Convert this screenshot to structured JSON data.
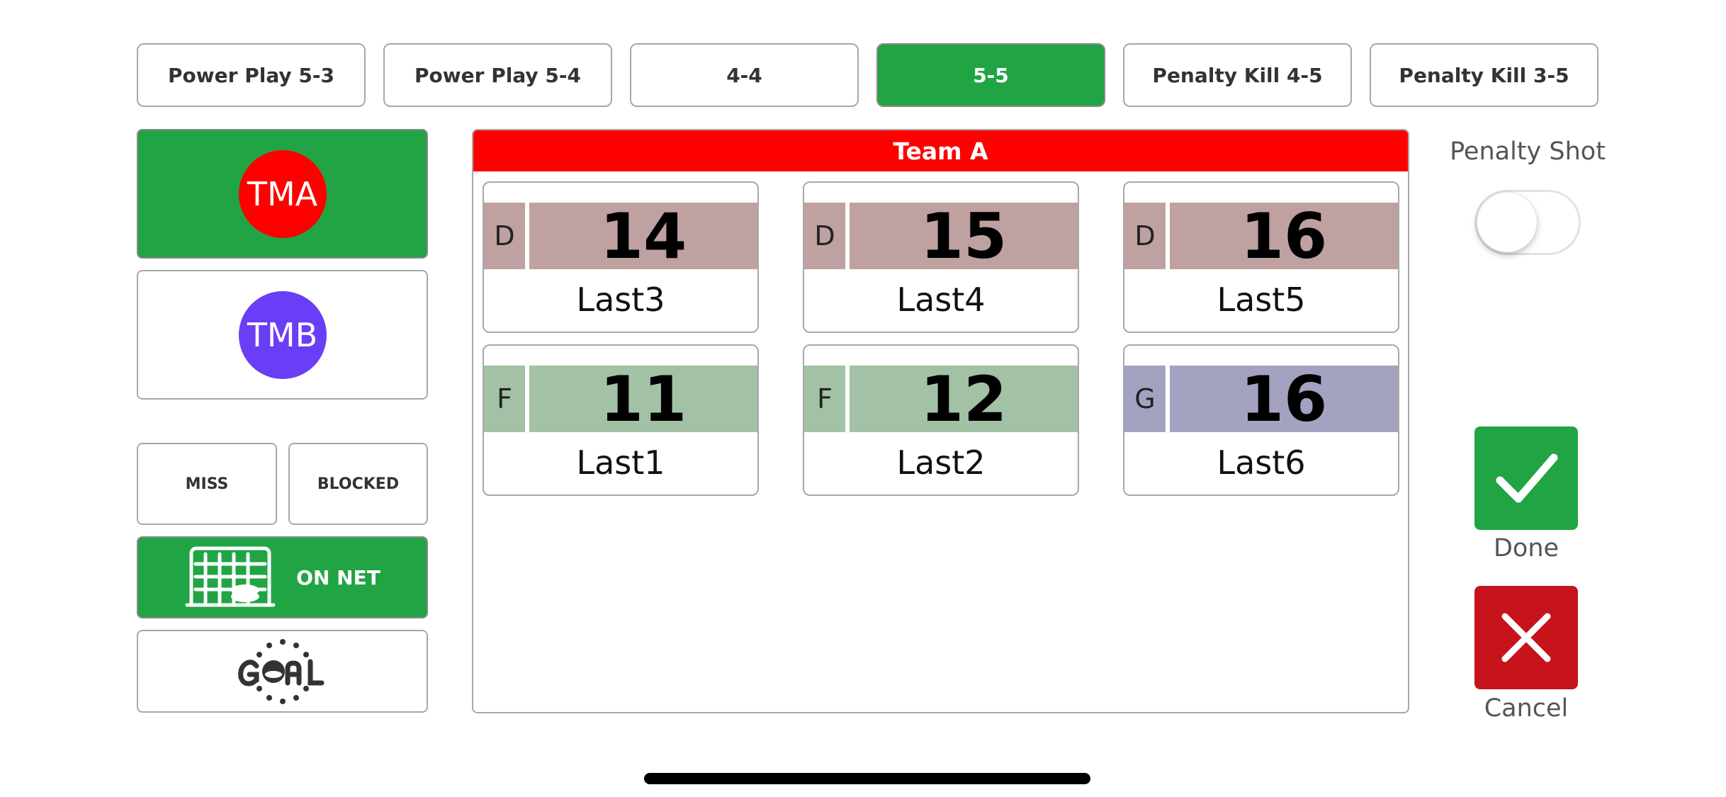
{
  "situations": [
    {
      "label": "Power Play 5-3",
      "active": false
    },
    {
      "label": "Power Play 5-4",
      "active": false
    },
    {
      "label": "4-4",
      "active": false
    },
    {
      "label": "5-5",
      "active": true
    },
    {
      "label": "Penalty Kill 4-5",
      "active": false
    },
    {
      "label": "Penalty Kill 3-5",
      "active": false
    }
  ],
  "teams": [
    {
      "abbr": "TMA",
      "color": "#ff0000",
      "selected": true
    },
    {
      "abbr": "TMB",
      "color": "#6a3df6",
      "selected": false
    }
  ],
  "shot_results": {
    "miss": "MISS",
    "blocked": "BLOCKED",
    "on_net": "ON NET",
    "goal": "GOAL"
  },
  "roster": {
    "team_name": "Team A",
    "players": [
      {
        "position": "D",
        "number": "14",
        "name": "Last3",
        "color": "#bfa1a2"
      },
      {
        "position": "D",
        "number": "15",
        "name": "Last4",
        "color": "#bfa1a2"
      },
      {
        "position": "D",
        "number": "16",
        "name": "Last5",
        "color": "#bfa1a2"
      },
      {
        "position": "F",
        "number": "11",
        "name": "Last1",
        "color": "#a3c1a4"
      },
      {
        "position": "F",
        "number": "12",
        "name": "Last2",
        "color": "#a3c1a4"
      },
      {
        "position": "G",
        "number": "16",
        "name": "Last6",
        "color": "#a3a3c1"
      }
    ]
  },
  "penalty_shot": {
    "label": "Penalty Shot",
    "on": false
  },
  "actions": {
    "done": {
      "label": "Done",
      "color": "#21a444"
    },
    "cancel": {
      "label": "Cancel",
      "color": "#c7141c"
    }
  },
  "colors": {
    "accent_green": "#21a444",
    "team_header": "#ff0000"
  }
}
